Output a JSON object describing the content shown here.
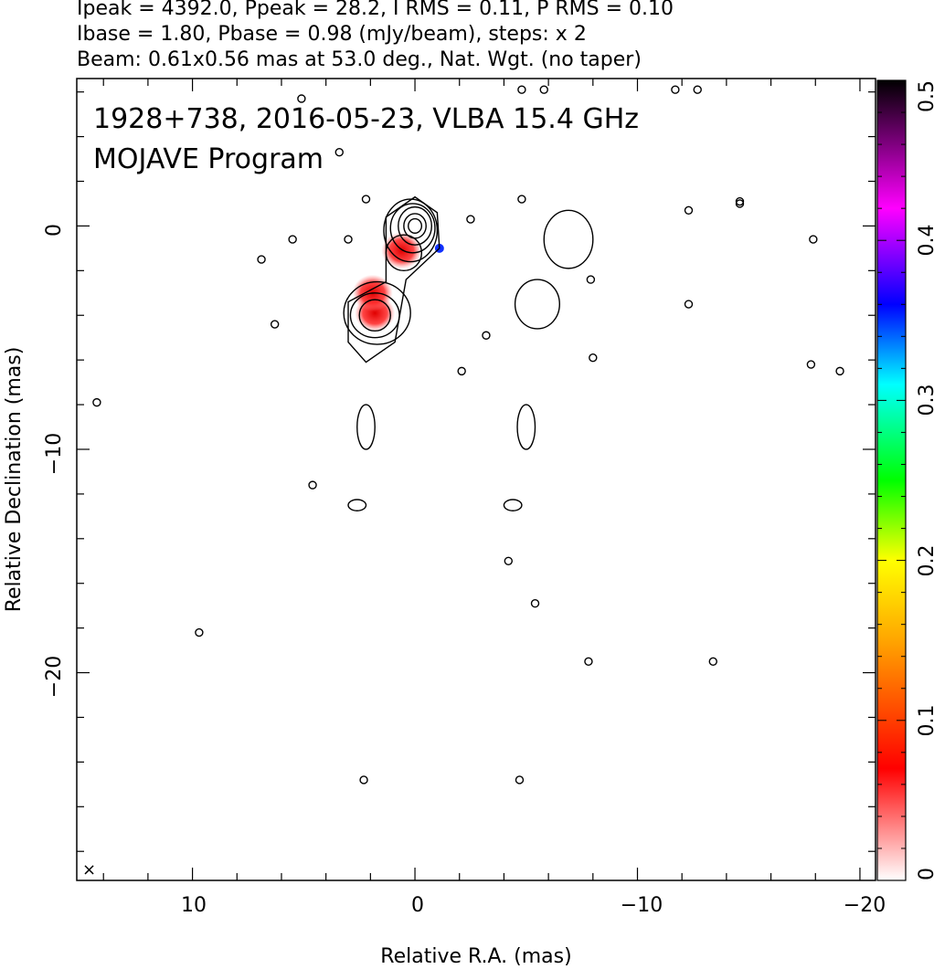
{
  "header": {
    "line1": "Ipeak = 4392.0, Ppeak = 28.2, I RMS = 0.11, P RMS = 0.10",
    "line2": "Ibase = 1.80, Pbase = 0.98 (mJy/beam), steps: x 2",
    "line3": "Beam: 0.61x0.56 mas at 53.0 deg., Nat. Wgt. (no taper)"
  },
  "plot_labels": {
    "source_line": "1928+738, 2016-05-23, VLBA 15.4 GHz",
    "program_line": "MOJAVE Program",
    "corner_marker": "×"
  },
  "chart_data": {
    "type": "contour-map",
    "xlabel": "Relative R.A. (mas)",
    "ylabel": "Relative Declination (mas)",
    "xlim": [
      15.2,
      -20.7
    ],
    "ylim": [
      -29.3,
      6.6
    ],
    "x_ticks": [
      10,
      0,
      -10,
      -20
    ],
    "x_tick_labels": [
      "10",
      "0",
      "−10",
      "−20"
    ],
    "y_ticks": [
      0,
      -10,
      -20
    ],
    "y_tick_labels": [
      "0",
      "−10",
      "−20"
    ],
    "colorbar": {
      "range": [
        0,
        0.5
      ],
      "ticks": [
        0,
        0.1,
        0.2,
        0.3,
        0.4,
        0.5
      ],
      "tick_labels": [
        "0",
        "0.1",
        "0.2",
        "0.3",
        "0.4",
        "0.5"
      ],
      "palette": [
        "#ffffff",
        "#ff0000",
        "#ffa500",
        "#ffff00",
        "#00ff00",
        "#00ffff",
        "#0000ff",
        "#ff00ff",
        "#000000"
      ]
    },
    "core": {
      "x": 0.0,
      "y": 0.0
    },
    "jet_contours": [
      {
        "x": 0.2,
        "y": -0.2,
        "rx": 1.2,
        "ry": 1.4
      },
      {
        "x": 0.1,
        "y": -0.1,
        "rx": 1.0,
        "ry": 1.1
      },
      {
        "x": 0.0,
        "y": 0.0,
        "rx": 0.75,
        "ry": 0.85
      },
      {
        "x": 0.0,
        "y": 0.0,
        "rx": 0.5,
        "ry": 0.55
      },
      {
        "x": 0.0,
        "y": 0.0,
        "rx": 0.3,
        "ry": 0.32
      },
      {
        "x": 0.5,
        "y": -1.2,
        "rx": 0.8,
        "ry": 0.8
      },
      {
        "x": 1.7,
        "y": -3.9,
        "rx": 1.5,
        "ry": 1.4
      },
      {
        "x": 1.8,
        "y": -4.0,
        "rx": 1.1,
        "ry": 1.0
      },
      {
        "x": 1.8,
        "y": -4.0,
        "rx": 0.7,
        "ry": 0.7
      }
    ],
    "polarization_spots": [
      {
        "x": 0.6,
        "y": -1.1,
        "value": 0.12
      },
      {
        "x": 1.8,
        "y": -3.9,
        "value": 0.13
      },
      {
        "x": 1.9,
        "y": -3.0,
        "value": 0.17
      },
      {
        "x": -1.1,
        "y": -1.0,
        "value": 0.4
      }
    ],
    "ghost_contours": [
      {
        "x": -6.9,
        "y": -0.6,
        "rx": 1.1,
        "ry": 1.3
      },
      {
        "x": -5.5,
        "y": -3.5,
        "rx": 1.0,
        "ry": 1.1
      },
      {
        "x": 2.2,
        "y": -9.0,
        "rx": 0.4,
        "ry": 1.0
      },
      {
        "x": -5.0,
        "y": -9.0,
        "rx": 0.4,
        "ry": 1.0
      },
      {
        "x": 2.6,
        "y": -12.5,
        "rx": 0.4,
        "ry": 0.25
      },
      {
        "x": -4.4,
        "y": -12.5,
        "rx": 0.4,
        "ry": 0.25
      }
    ],
    "noise_islands": [
      {
        "x": 5.1,
        "y": 5.7
      },
      {
        "x": -4.8,
        "y": 6.1
      },
      {
        "x": -5.8,
        "y": 6.1
      },
      {
        "x": -11.7,
        "y": 6.1
      },
      {
        "x": -12.7,
        "y": 6.1
      },
      {
        "x": 2.2,
        "y": 1.2
      },
      {
        "x": -4.8,
        "y": 1.2
      },
      {
        "x": -12.3,
        "y": 0.7
      },
      {
        "x": -14.6,
        "y": 1.0
      },
      {
        "x": 5.5,
        "y": -0.6
      },
      {
        "x": 6.9,
        "y": -1.5
      },
      {
        "x": 3.0,
        "y": -0.6
      },
      {
        "x": -2.5,
        "y": 0.3
      },
      {
        "x": -7.9,
        "y": -2.4
      },
      {
        "x": -12.3,
        "y": -3.5
      },
      {
        "x": -8.0,
        "y": -5.9
      },
      {
        "x": -17.8,
        "y": -6.2
      },
      {
        "x": -19.1,
        "y": -6.5
      },
      {
        "x": 14.3,
        "y": -7.9
      },
      {
        "x": 4.6,
        "y": -11.6
      },
      {
        "x": 9.7,
        "y": -18.2
      },
      {
        "x": -7.8,
        "y": -19.5
      },
      {
        "x": -13.4,
        "y": -19.5
      },
      {
        "x": -4.2,
        "y": -15.0
      },
      {
        "x": -5.4,
        "y": -16.9
      },
      {
        "x": 2.3,
        "y": -24.8
      },
      {
        "x": -4.7,
        "y": -24.8
      },
      {
        "x": -17.9,
        "y": -0.6
      },
      {
        "x": -14.6,
        "y": 1.1
      },
      {
        "x": -2.1,
        "y": -6.5
      },
      {
        "x": -3.2,
        "y": -4.9
      },
      {
        "x": 6.3,
        "y": -4.4
      },
      {
        "x": 3.4,
        "y": 3.3
      }
    ]
  }
}
